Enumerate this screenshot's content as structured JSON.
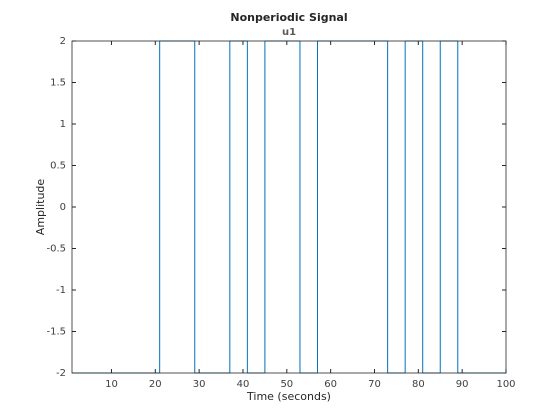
{
  "chart_data": {
    "type": "stairs",
    "title": "Nonperiodic Signal",
    "subtitle": "u1",
    "x_label": "Time (seconds)",
    "y_label": "Amplitude",
    "x": [
      1,
      21,
      29,
      37,
      41,
      45,
      53,
      57,
      73,
      77,
      81,
      85,
      89,
      100
    ],
    "values": [
      -2,
      2,
      -2,
      2,
      -2,
      2,
      -2,
      2,
      -2,
      2,
      -2,
      2,
      -2,
      -2
    ],
    "color": "#0072bd",
    "xlim": [
      1,
      100
    ],
    "xticks": [
      10,
      20,
      30,
      40,
      50,
      60,
      70,
      80,
      90,
      100
    ],
    "ylim": [
      -2,
      2
    ],
    "yticks": [
      -2,
      -1.5,
      -1,
      -0.5,
      0,
      0.5,
      1,
      1.5,
      2
    ]
  }
}
